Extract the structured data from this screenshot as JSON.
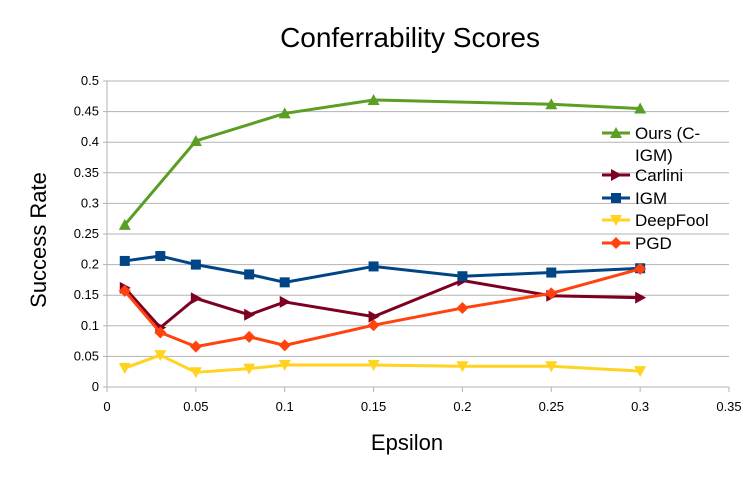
{
  "chart_data": {
    "type": "line",
    "title": "Conferrability Scores",
    "xlabel": "Epsilon",
    "ylabel": "Success Rate",
    "xlim": [
      0,
      0.35
    ],
    "ylim": [
      0,
      0.5
    ],
    "xticks": [
      "0",
      "0.05",
      "0.1",
      "0.15",
      "0.2",
      "0.25",
      "0.3",
      "0.35"
    ],
    "yticks": [
      "0",
      "0.05",
      "0.1",
      "0.15",
      "0.2",
      "0.25",
      "0.3",
      "0.35",
      "0.4",
      "0.45",
      "0.5"
    ],
    "grid": "horizontal",
    "legend_position": "right",
    "x": [
      0.01,
      0.03,
      0.05,
      0.08,
      0.1,
      0.15,
      0.2,
      0.25,
      0.3
    ],
    "series": [
      {
        "name": "Ours (C-IGM)",
        "color": "#5b9e24",
        "marker": "triangle-up",
        "values": [
          0.265,
          null,
          0.402,
          null,
          0.447,
          0.469,
          null,
          0.462,
          0.455
        ]
      },
      {
        "name": "Carlini",
        "color": "#7e0021",
        "marker": "triangle-right",
        "values": [
          0.162,
          0.097,
          0.145,
          0.118,
          0.139,
          0.115,
          0.174,
          0.149,
          0.146
        ]
      },
      {
        "name": "IGM",
        "color": "#004586",
        "marker": "square",
        "values": [
          0.206,
          0.214,
          0.2,
          0.184,
          0.171,
          0.197,
          0.181,
          0.187,
          0.194
        ]
      },
      {
        "name": "DeepFool",
        "color": "#ffd320",
        "marker": "triangle-down",
        "values": [
          0.031,
          0.052,
          0.024,
          0.03,
          0.036,
          0.036,
          0.034,
          0.034,
          0.026
        ]
      },
      {
        "name": "PGD",
        "color": "#ff420e",
        "marker": "diamond",
        "values": [
          0.157,
          0.089,
          0.066,
          0.082,
          0.068,
          0.101,
          0.129,
          0.153,
          0.193
        ]
      }
    ],
    "legend_lines": [
      [
        "Ours (C-",
        "IGM)"
      ],
      [
        "Carlini"
      ],
      [
        "IGM"
      ],
      [
        "DeepFool"
      ],
      [
        "PGD"
      ]
    ]
  }
}
